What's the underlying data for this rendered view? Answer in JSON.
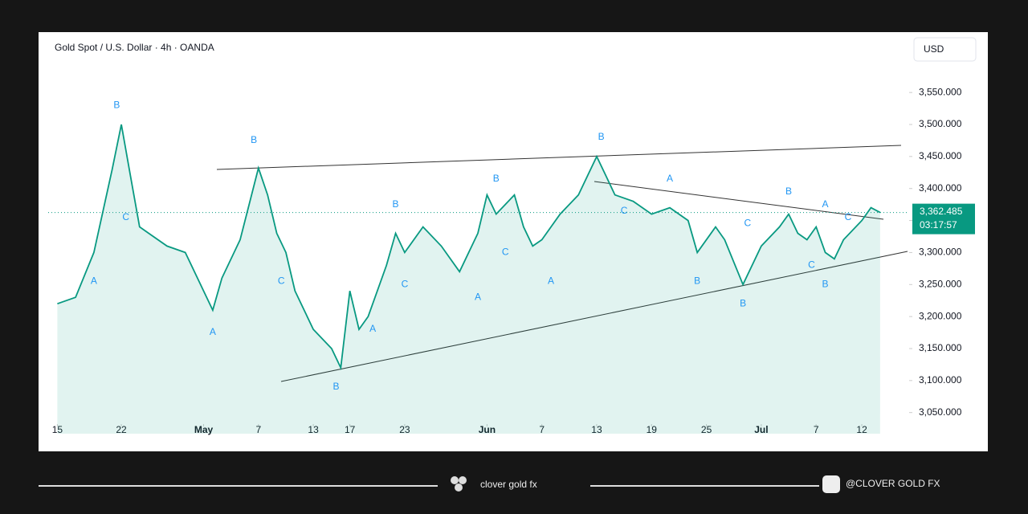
{
  "chart_data": {
    "type": "line",
    "title": "Gold Spot / U.S. Dollar · 4h · OANDA",
    "currency": "USD",
    "last_price": {
      "value": 3362.485,
      "label": "3,362.485"
    },
    "countdown": "03:17:57",
    "x": [
      0,
      2,
      4,
      6,
      7,
      8,
      9,
      10,
      12,
      14,
      16,
      17,
      18,
      20,
      22,
      23,
      24,
      25,
      26,
      28,
      30,
      31,
      32,
      33,
      34,
      36,
      37,
      38,
      40,
      42,
      44,
      45,
      46,
      47,
      48,
      50,
      51,
      52,
      53,
      55,
      57,
      59,
      60,
      61,
      63,
      65,
      67,
      69,
      70,
      72,
      73,
      75,
      77,
      79,
      80,
      81,
      82,
      83,
      84,
      85,
      86,
      88,
      89,
      90
    ],
    "values": [
      3220,
      3230,
      3300,
      3430,
      3500,
      3420,
      3340,
      3330,
      3310,
      3300,
      3240,
      3210,
      3260,
      3320,
      3432,
      3390,
      3330,
      3300,
      3240,
      3180,
      3150,
      3120,
      3240,
      3180,
      3200,
      3280,
      3330,
      3300,
      3340,
      3310,
      3270,
      3300,
      3330,
      3390,
      3360,
      3390,
      3340,
      3310,
      3320,
      3360,
      3390,
      3450,
      3420,
      3390,
      3380,
      3360,
      3370,
      3350,
      3300,
      3340,
      3320,
      3250,
      3310,
      3340,
      3360,
      3330,
      3320,
      3340,
      3300,
      3290,
      3320,
      3350,
      3370,
      3362.485
    ],
    "color": "#089981",
    "xlim": [
      -1,
      93
    ],
    "xticks": [
      {
        "value": 0,
        "label": "15"
      },
      {
        "value": 7,
        "label": "22"
      },
      {
        "value": 16,
        "label": "May"
      },
      {
        "value": 22,
        "label": "7"
      },
      {
        "value": 28,
        "label": "13"
      },
      {
        "value": 32,
        "label": "17"
      },
      {
        "value": 38,
        "label": "23"
      },
      {
        "value": 47,
        "label": "Jun"
      },
      {
        "value": 53,
        "label": "7"
      },
      {
        "value": 59,
        "label": "13"
      },
      {
        "value": 65,
        "label": "19"
      },
      {
        "value": 71,
        "label": "25"
      },
      {
        "value": 77,
        "label": "Jul"
      },
      {
        "value": 83,
        "label": "7"
      },
      {
        "value": 88,
        "label": "12"
      }
    ],
    "ylim": [
      3017,
      3638
    ],
    "yticks": [
      {
        "value": 3050,
        "label": "3,050.000"
      },
      {
        "value": 3100,
        "label": "3,100.000"
      },
      {
        "value": 3150,
        "label": "3,150.000"
      },
      {
        "value": 3200,
        "label": "3,200.000"
      },
      {
        "value": 3250,
        "label": "3,250.000"
      },
      {
        "value": 3300,
        "label": "3,300.000"
      },
      {
        "value": 3350,
        "label": "3,350.000"
      },
      {
        "value": 3400,
        "label": "3,400.000"
      },
      {
        "value": 3450,
        "label": "3,450.000"
      },
      {
        "value": 3500,
        "label": "3,500.000"
      },
      {
        "value": 3550,
        "label": "3,550.000"
      }
    ],
    "annotations": [
      {
        "text": "B",
        "x": 6.5,
        "y": 3530
      },
      {
        "text": "A",
        "x": 4,
        "y": 3255
      },
      {
        "text": "C",
        "x": 7.5,
        "y": 3355
      },
      {
        "text": "A",
        "x": 17,
        "y": 3175
      },
      {
        "text": "B",
        "x": 21.5,
        "y": 3475
      },
      {
        "text": "C",
        "x": 24.5,
        "y": 3255
      },
      {
        "text": "B",
        "x": 30.5,
        "y": 3090
      },
      {
        "text": "A",
        "x": 34.5,
        "y": 3180
      },
      {
        "text": "B",
        "x": 37,
        "y": 3375
      },
      {
        "text": "C",
        "x": 38,
        "y": 3250
      },
      {
        "text": "A",
        "x": 46,
        "y": 3230
      },
      {
        "text": "B",
        "x": 48,
        "y": 3415
      },
      {
        "text": "C",
        "x": 49,
        "y": 3300
      },
      {
        "text": "A",
        "x": 54,
        "y": 3255
      },
      {
        "text": "B",
        "x": 59.5,
        "y": 3480
      },
      {
        "text": "C",
        "x": 62,
        "y": 3365
      },
      {
        "text": "A",
        "x": 67,
        "y": 3415
      },
      {
        "text": "B",
        "x": 70,
        "y": 3255
      },
      {
        "text": "B",
        "x": 75,
        "y": 3220
      },
      {
        "text": "C",
        "x": 75.5,
        "y": 3345
      },
      {
        "text": "B",
        "x": 80,
        "y": 3395
      },
      {
        "text": "A",
        "x": 84,
        "y": 3375
      },
      {
        "text": "C",
        "x": 82.5,
        "y": 3280
      },
      {
        "text": "C",
        "x": 86.5,
        "y": 3355
      },
      {
        "text": "B",
        "x": 84,
        "y": 3250
      }
    ],
    "footer_brand": "clover gold fx",
    "footer_handle": "@CLOVER GOLD FX"
  }
}
